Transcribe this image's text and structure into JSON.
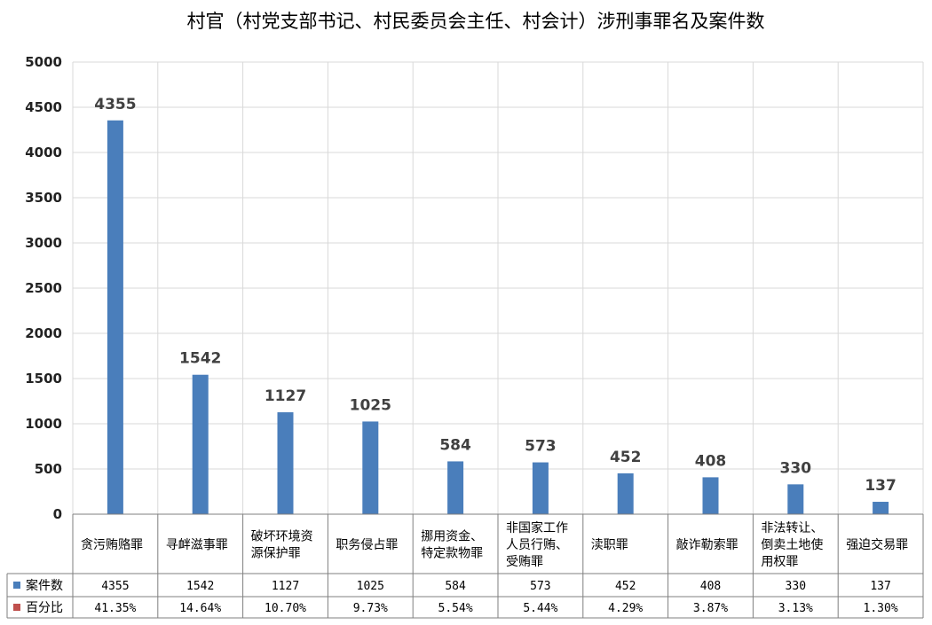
{
  "chart_data": {
    "type": "bar",
    "title": "村官（村党支部书记、村民委员会主任、村会计）涉刑事罪名及案件数",
    "categories": [
      [
        "贪污贿赂罪"
      ],
      [
        "寻衅滋事罪"
      ],
      [
        "破坏环境资",
        "源保护罪"
      ],
      [
        "职务侵占罪"
      ],
      [
        "挪用资金、",
        "特定款物罪"
      ],
      [
        "非国家工作",
        "人员行贿、",
        "受贿罪"
      ],
      [
        "渎职罪"
      ],
      [
        "敲诈勒索罪"
      ],
      [
        "非法转让、",
        "倒卖土地使",
        "用权罪"
      ],
      [
        "强迫交易罪"
      ]
    ],
    "series": [
      {
        "name": "案件数",
        "values": [
          4355,
          1542,
          1127,
          1025,
          584,
          573,
          452,
          408,
          330,
          137
        ],
        "color": "#4a7ebb"
      },
      {
        "name": "百分比",
        "values": [
          "41.35%",
          "14.64%",
          "10.70%",
          "9.73%",
          "5.54%",
          "5.44%",
          "4.29%",
          "3.87%",
          "3.13%",
          "1.30%"
        ],
        "color": "#c0504d"
      }
    ],
    "ylim": [
      0,
      5000
    ],
    "yticks": [
      0,
      500,
      1000,
      1500,
      2000,
      2500,
      3000,
      3500,
      4000,
      4500,
      5000
    ],
    "grid": true,
    "data_table": true
  }
}
